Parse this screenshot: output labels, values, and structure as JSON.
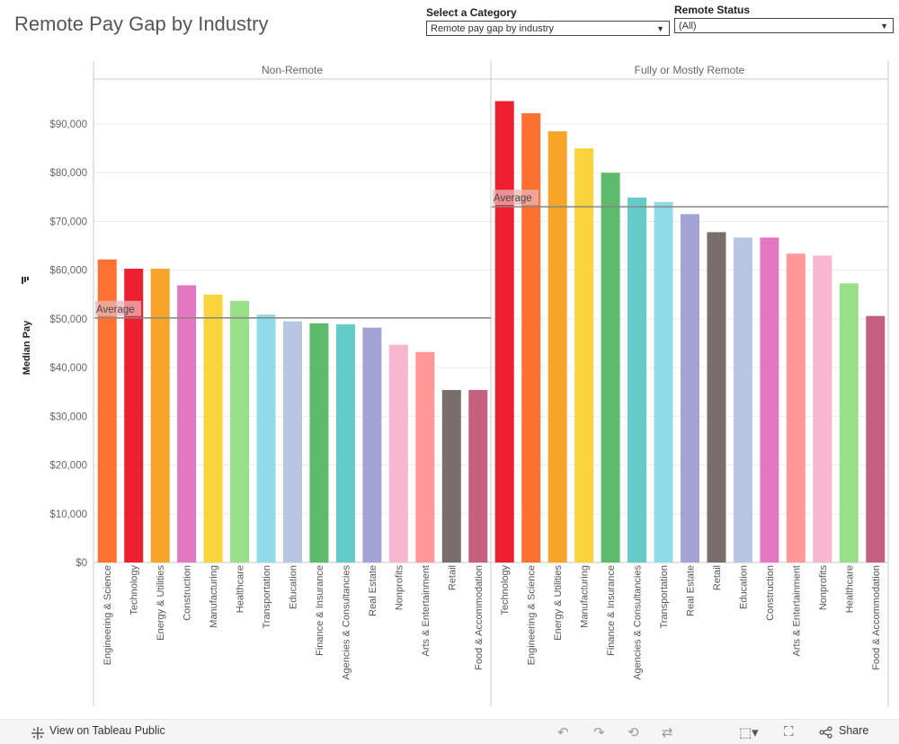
{
  "page": {
    "title": "Remote Pay Gap by Industry"
  },
  "filters": {
    "category": {
      "label": "Select a Category",
      "value": "Remote pay gap by industry"
    },
    "remote_status": {
      "label": "Remote Status",
      "value": "(All)"
    }
  },
  "footer": {
    "view_label": "View on Tableau Public",
    "share_label": "Share"
  },
  "chart_data": {
    "type": "bar",
    "ylabel": "Median Pay",
    "ylim": [
      0,
      100000
    ],
    "yticks": [
      0,
      10000,
      20000,
      30000,
      40000,
      50000,
      60000,
      70000,
      80000,
      90000
    ],
    "ytick_labels": [
      "$0",
      "$10,000",
      "$20,000",
      "$30,000",
      "$40,000",
      "$50,000",
      "$60,000",
      "$70,000",
      "$80,000",
      "$90,000"
    ],
    "reference_label": "Average",
    "colors": {
      "Engineering & Science": "#ff7033",
      "Technology": "#ee1f2e",
      "Energy & Utilities": "#f7a428",
      "Construction": "#e377c2",
      "Manufacturing": "#f9d43b",
      "Healthcare": "#98df8a",
      "Transportation": "#90dbe8",
      "Education": "#b8c6e3",
      "Finance & Insurance": "#5dbb6b",
      "Agencies & Consultancies": "#64cbc8",
      "Real Estate": "#a3a3d6",
      "Nonprofits": "#f8b6d0",
      "Arts & Entertainment": "#ff9896",
      "Retail": "#7a6e6c",
      "Food & Accommodation": "#c5607f"
    },
    "panels": [
      {
        "name": "Non-Remote",
        "average": 50200,
        "categories": [
          "Engineering & Science",
          "Technology",
          "Energy & Utilities",
          "Construction",
          "Manufacturing",
          "Healthcare",
          "Transportation",
          "Education",
          "Finance & Insurance",
          "Agencies & Consultancies",
          "Real Estate",
          "Nonprofits",
          "Arts & Entertainment",
          "Retail",
          "Food & Accommodation"
        ],
        "values": [
          62200,
          60300,
          60300,
          56900,
          55000,
          53700,
          50900,
          49500,
          49100,
          48900,
          48200,
          44700,
          43200,
          35400,
          35400
        ]
      },
      {
        "name": "Fully or Mostly Remote",
        "average": 73000,
        "categories": [
          "Technology",
          "Engineering & Science",
          "Energy & Utilities",
          "Manufacturing",
          "Finance & Insurance",
          "Agencies & Consultancies",
          "Transportation",
          "Real Estate",
          "Retail",
          "Education",
          "Construction",
          "Arts & Entertainment",
          "Nonprofits",
          "Healthcare",
          "Food & Accommodation"
        ],
        "values": [
          94700,
          92200,
          88500,
          85000,
          80000,
          74900,
          74000,
          71500,
          67800,
          66700,
          66700,
          63400,
          63000,
          57300,
          50600
        ]
      }
    ]
  }
}
